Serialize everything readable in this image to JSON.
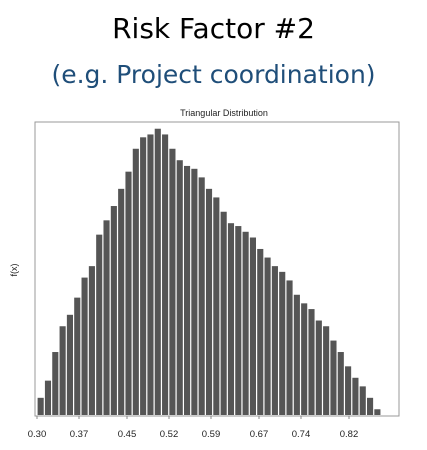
{
  "header": {
    "title": "Risk Factor #2",
    "subtitle": "(e.g. Project coordination)"
  },
  "colors": {
    "bar": "#555555",
    "axis": "#888888",
    "subtitle": "#1f4e79"
  },
  "chart_data": {
    "type": "bar",
    "title": "Triangular Distribution",
    "xlabel": "",
    "ylabel": "f(x)",
    "grid": false,
    "xlim": [
      0.3,
      0.9
    ],
    "ylim": [
      0,
      1.02
    ],
    "xticks": [
      "0.30",
      "0.37",
      "0.45",
      "0.52",
      "0.59",
      "0.67",
      "0.74",
      "0.82"
    ],
    "bin_width": 0.0122,
    "bin_start": 0.3,
    "values": [
      0.06,
      0.12,
      0.22,
      0.31,
      0.35,
      0.41,
      0.48,
      0.52,
      0.63,
      0.68,
      0.73,
      0.79,
      0.85,
      0.93,
      0.97,
      0.98,
      1.0,
      0.98,
      0.93,
      0.89,
      0.87,
      0.86,
      0.83,
      0.79,
      0.76,
      0.71,
      0.67,
      0.66,
      0.64,
      0.62,
      0.58,
      0.55,
      0.52,
      0.5,
      0.47,
      0.42,
      0.39,
      0.37,
      0.33,
      0.31,
      0.26,
      0.22,
      0.17,
      0.13,
      0.1,
      0.06,
      0.02
    ]
  }
}
